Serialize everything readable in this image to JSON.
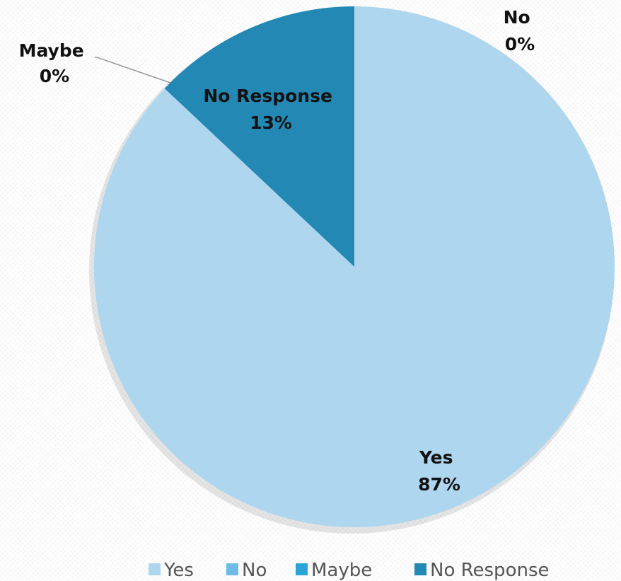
{
  "chart_data": {
    "type": "pie",
    "title": "",
    "legend_position": "bottom",
    "slices": [
      {
        "name": "Yes",
        "value": 87,
        "label": "87%",
        "color": "#aed6ef"
      },
      {
        "name": "No",
        "value": 0,
        "label": "0%",
        "color": "#6dbbe6"
      },
      {
        "name": "Maybe",
        "value": 0,
        "label": "0%",
        "color": "#2ba5d9"
      },
      {
        "name": "No Response",
        "value": 13,
        "label": "13%",
        "color": "#2389b4"
      }
    ]
  }
}
